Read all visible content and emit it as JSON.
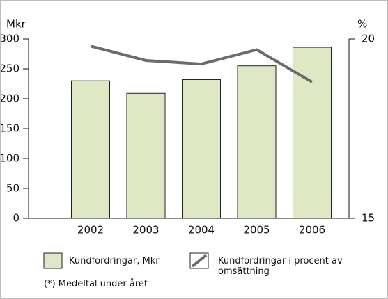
{
  "chart_data": {
    "type": "bar_line",
    "y_label": "Mkr",
    "y2_label": "%",
    "categories": [
      "2002",
      "2003",
      "2004",
      "2005",
      "2006"
    ],
    "series": [
      {
        "name": "Kundfordringar, Mkr",
        "type": "bar",
        "color": "#dfe8c4",
        "values": [
          230,
          209,
          232,
          255,
          286
        ]
      },
      {
        "name": "Kundfordringar i procent av omsättning",
        "type": "line",
        "axis": "y2",
        "color": "#6b6b6b",
        "values": [
          19.8,
          19.4,
          19.3,
          19.7,
          18.8
        ]
      }
    ],
    "ylim": [
      0,
      300
    ],
    "yticks": [
      0,
      50,
      100,
      150,
      200,
      250,
      300
    ],
    "y2lim": [
      15,
      20
    ],
    "y2ticks": [
      15,
      20
    ],
    "note": "(*) Medeltal under året"
  }
}
